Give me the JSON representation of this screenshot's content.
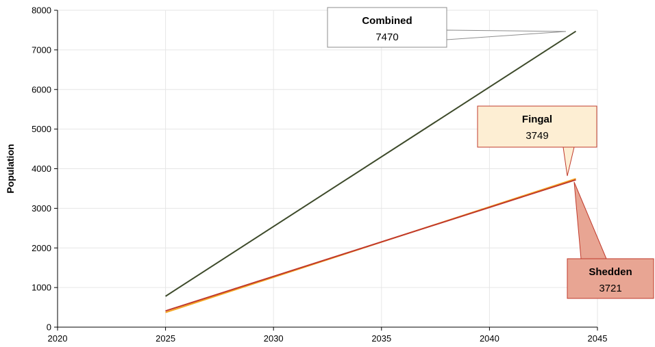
{
  "chart_data": {
    "type": "line",
    "title": "",
    "xlabel": "",
    "ylabel": "Population",
    "xlim": [
      2020,
      2045
    ],
    "ylim": [
      0,
      8000
    ],
    "xticks": [
      2020,
      2025,
      2030,
      2035,
      2040,
      2045
    ],
    "yticks": [
      0,
      1000,
      2000,
      3000,
      4000,
      5000,
      6000,
      7000,
      8000
    ],
    "grid": true,
    "legend": "none",
    "series": [
      {
        "name": "Combined",
        "color": "#3d4a2a",
        "points": [
          [
            2025,
            780
          ],
          [
            2044,
            7470
          ]
        ]
      },
      {
        "name": "Fingal",
        "color": "#f5a623",
        "points": [
          [
            2025,
            370
          ],
          [
            2044,
            3749
          ]
        ]
      },
      {
        "name": "Shedden",
        "color": "#c0392b",
        "points": [
          [
            2025,
            410
          ],
          [
            2044,
            3721
          ]
        ]
      }
    ],
    "annotations": [
      {
        "series": "Combined",
        "label": "Combined",
        "value": "7470",
        "fill": "#ffffff",
        "stroke": "#8c8c8c"
      },
      {
        "series": "Fingal",
        "label": "Fingal",
        "value": "3749",
        "fill": "#fdeed3",
        "stroke": "#c0392b"
      },
      {
        "series": "Shedden",
        "label": "Shedden",
        "value": "3721",
        "fill": "#e8a593",
        "stroke": "#c0392b"
      }
    ]
  }
}
